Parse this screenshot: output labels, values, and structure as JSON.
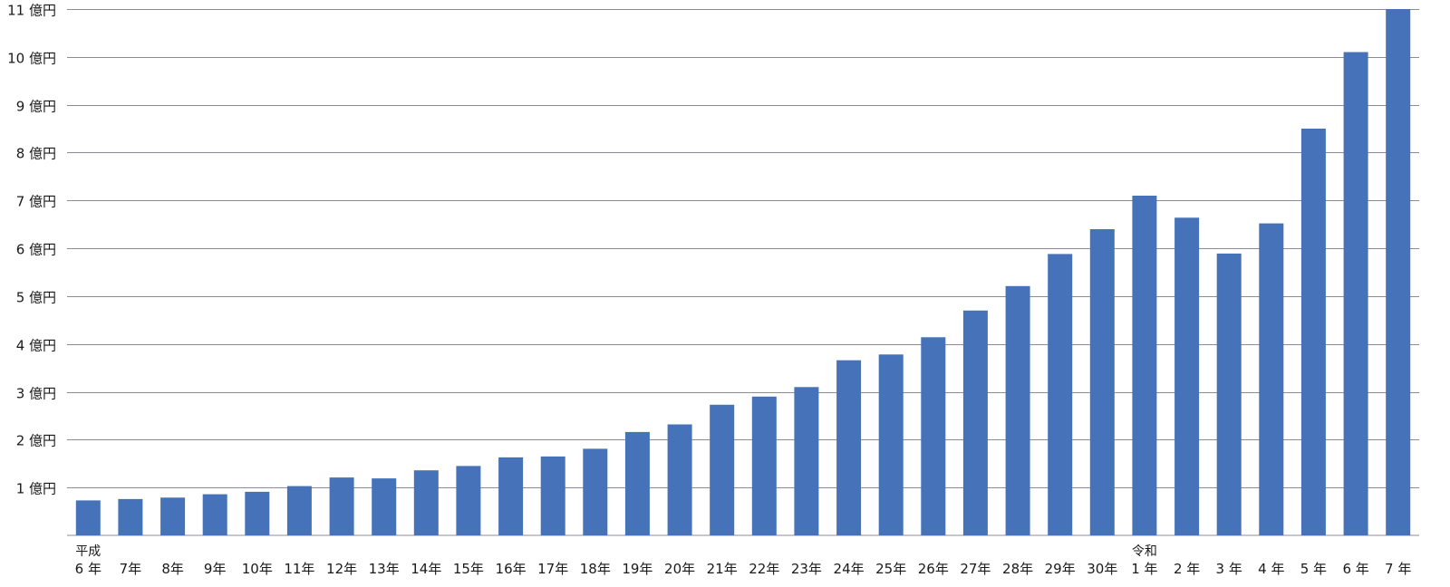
{
  "chart_data": {
    "type": "bar",
    "title": "",
    "xlabel": "",
    "ylabel": "",
    "ylim": [
      0,
      11
    ],
    "grid": true,
    "bar_color": "#4572b8",
    "grid_color": "#8c8c99",
    "y_ticks": [
      {
        "value": 1,
        "label": "1 億円"
      },
      {
        "value": 2,
        "label": "2 億円"
      },
      {
        "value": 3,
        "label": "3 億円"
      },
      {
        "value": 4,
        "label": "4 億円"
      },
      {
        "value": 5,
        "label": "5 億円"
      },
      {
        "value": 6,
        "label": "6 億円"
      },
      {
        "value": 7,
        "label": "7 億円"
      },
      {
        "value": 8,
        "label": "8 億円"
      },
      {
        "value": 9,
        "label": "9 億円"
      },
      {
        "value": 10,
        "label": "10 億円"
      },
      {
        "value": 11,
        "label": "11 億円"
      }
    ],
    "categories": [
      {
        "era": "平成",
        "label": "6 年"
      },
      {
        "era": "",
        "label": "7年"
      },
      {
        "era": "",
        "label": "8年"
      },
      {
        "era": "",
        "label": "9年"
      },
      {
        "era": "",
        "label": "10年"
      },
      {
        "era": "",
        "label": "11年"
      },
      {
        "era": "",
        "label": "12年"
      },
      {
        "era": "",
        "label": "13年"
      },
      {
        "era": "",
        "label": "14年"
      },
      {
        "era": "",
        "label": "15年"
      },
      {
        "era": "",
        "label": "16年"
      },
      {
        "era": "",
        "label": "17年"
      },
      {
        "era": "",
        "label": "18年"
      },
      {
        "era": "",
        "label": "19年"
      },
      {
        "era": "",
        "label": "20年"
      },
      {
        "era": "",
        "label": "21年"
      },
      {
        "era": "",
        "label": "22年"
      },
      {
        "era": "",
        "label": "23年"
      },
      {
        "era": "",
        "label": "24年"
      },
      {
        "era": "",
        "label": "25年"
      },
      {
        "era": "",
        "label": "26年"
      },
      {
        "era": "",
        "label": "27年"
      },
      {
        "era": "",
        "label": "28年"
      },
      {
        "era": "",
        "label": "29年"
      },
      {
        "era": "",
        "label": "30年"
      },
      {
        "era": "令和",
        "label": "1 年"
      },
      {
        "era": "",
        "label": "2 年"
      },
      {
        "era": "",
        "label": "3 年"
      },
      {
        "era": "",
        "label": "4 年"
      },
      {
        "era": "",
        "label": "5 年"
      },
      {
        "era": "",
        "label": "6 年"
      },
      {
        "era": "",
        "label": "7 年"
      }
    ],
    "values": [
      0.73,
      0.76,
      0.79,
      0.86,
      0.91,
      1.03,
      1.21,
      1.19,
      1.36,
      1.45,
      1.63,
      1.65,
      1.81,
      2.16,
      2.32,
      2.73,
      2.9,
      3.1,
      3.66,
      3.78,
      4.14,
      4.7,
      5.21,
      5.88,
      6.4,
      7.1,
      6.64,
      5.89,
      6.52,
      8.5,
      10.1,
      11.0
    ]
  }
}
